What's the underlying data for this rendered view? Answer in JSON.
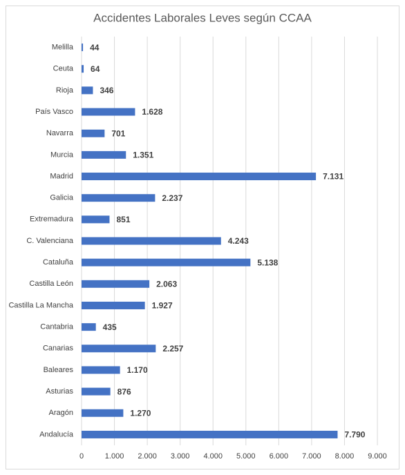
{
  "chart_data": {
    "type": "bar",
    "orientation": "horizontal",
    "title": "Accidentes Laborales Leves según CCAA",
    "categories": [
      "Melilla",
      "Ceuta",
      "Rioja",
      "País Vasco",
      "Navarra",
      "Murcia",
      "Madrid",
      "Galicia",
      "Extremadura",
      "C. Valenciana",
      "Cataluña",
      "Castilla León",
      "Castilla La Mancha",
      "Cantabria",
      "Canarias",
      "Baleares",
      "Asturias",
      "Aragón",
      "Andalucía"
    ],
    "values": [
      44,
      64,
      346,
      1628,
      701,
      1351,
      7131,
      2237,
      851,
      4243,
      5138,
      2063,
      1927,
      435,
      2257,
      1170,
      876,
      1270,
      7790
    ],
    "value_labels": [
      "44",
      "64",
      "346",
      "1.628",
      "701",
      "1.351",
      "7.131",
      "2.237",
      "851",
      "4.243",
      "5.138",
      "2.063",
      "1.927",
      "435",
      "2.257",
      "1.170",
      "876",
      "1.270",
      "7.790"
    ],
    "color": "#4472c4",
    "xlim": [
      0,
      9000
    ],
    "xticks": [
      0,
      {
        "value": 1000,
        "label": "1.000"
      },
      {
        "value": 2000,
        "label": "2.000"
      },
      {
        "value": 3000,
        "label": "3.000"
      },
      {
        "value": 4000,
        "label": "4.000"
      },
      {
        "value": 5000,
        "label": "5.000"
      },
      {
        "value": 6000,
        "label": "6.000"
      },
      {
        "value": 7000,
        "label": "7.000"
      },
      {
        "value": 8000,
        "label": "8.000"
      },
      {
        "value": 9000,
        "label": "9.000"
      }
    ],
    "grid": true
  }
}
